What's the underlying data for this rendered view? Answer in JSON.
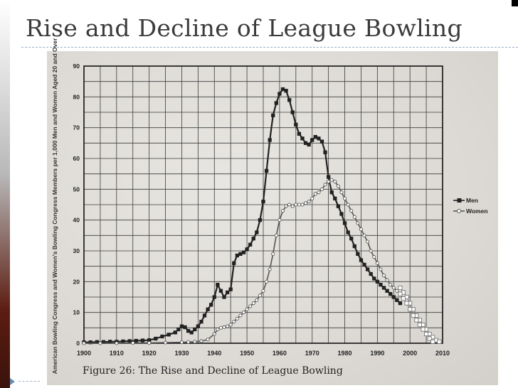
{
  "slide": {
    "title": "Rise and Decline of League Bowling"
  },
  "caption": "Figure 26: The Rise and Decline of League Bowling",
  "chart_data": {
    "type": "line",
    "xlabel": "",
    "ylabel": "American Bowling Congress and Women's Bowling Congress Members per 1,000 Men and Women Aged 20 and Over",
    "xlim": [
      1900,
      2010
    ],
    "ylim": [
      0,
      90
    ],
    "xticks": [
      1900,
      1910,
      1920,
      1930,
      1940,
      1950,
      1960,
      1970,
      1980,
      1990,
      2000,
      2010
    ],
    "yticks": [
      0,
      10,
      20,
      30,
      40,
      50,
      60,
      70,
      80,
      90
    ],
    "grid": true,
    "legend_position": "right",
    "colors": {
      "men": "#222222",
      "women": "#555555",
      "projection": "#777777",
      "grid": "#3a3a3a"
    },
    "series": [
      {
        "name": "Men",
        "marker": "filled-square",
        "x": [
          1900,
          1902,
          1904,
          1906,
          1908,
          1910,
          1912,
          1914,
          1916,
          1918,
          1920,
          1922,
          1924,
          1926,
          1928,
          1929,
          1930,
          1931,
          1932,
          1933,
          1934,
          1935,
          1936,
          1937,
          1938,
          1939,
          1940,
          1941,
          1942,
          1943,
          1944,
          1945,
          1946,
          1947,
          1948,
          1949,
          1950,
          1951,
          1952,
          1953,
          1954,
          1955,
          1956,
          1957,
          1958,
          1959,
          1960,
          1961,
          1962,
          1963,
          1964,
          1965,
          1966,
          1967,
          1968,
          1969,
          1970,
          1971,
          1972,
          1973,
          1974,
          1975,
          1976,
          1977,
          1978,
          1979,
          1980,
          1981,
          1982,
          1983,
          1984,
          1985,
          1986,
          1987,
          1988,
          1989,
          1990,
          1991,
          1992,
          1993,
          1994,
          1995,
          1996,
          1997
        ],
        "values": [
          0.3,
          0.3,
          0.4,
          0.4,
          0.5,
          0.5,
          0.6,
          0.7,
          0.8,
          0.9,
          1.0,
          1.5,
          2.2,
          2.8,
          3.5,
          4.5,
          5.5,
          5.2,
          4.0,
          3.5,
          4.5,
          5.5,
          7.0,
          9.0,
          11.0,
          12.5,
          15.0,
          19.0,
          17.0,
          15.0,
          16.5,
          17.5,
          26.0,
          28.5,
          29.0,
          29.5,
          30.5,
          32.0,
          34.0,
          36.0,
          40.0,
          46.0,
          56.0,
          66.0,
          74.0,
          78.0,
          81.0,
          82.5,
          82.0,
          79.0,
          75.0,
          71.0,
          68.0,
          66.5,
          65.0,
          64.5,
          66.0,
          67.0,
          66.5,
          65.5,
          62.0,
          54.0,
          49.0,
          47.0,
          44.5,
          42.0,
          39.0,
          36.0,
          34.0,
          31.5,
          29.0,
          27.0,
          25.5,
          24.0,
          22.5,
          21.0,
          20.0,
          19.0,
          18.0,
          17.0,
          16.0,
          15.0,
          14.0,
          13.0
        ]
      },
      {
        "name": "Women",
        "marker": "open-circle",
        "x": [
          1900,
          1905,
          1910,
          1915,
          1920,
          1925,
          1930,
          1932,
          1934,
          1936,
          1938,
          1940,
          1941,
          1942,
          1943,
          1944,
          1945,
          1946,
          1947,
          1948,
          1949,
          1950,
          1951,
          1952,
          1953,
          1954,
          1955,
          1956,
          1957,
          1958,
          1959,
          1960,
          1961,
          1962,
          1963,
          1964,
          1965,
          1966,
          1967,
          1968,
          1969,
          1970,
          1971,
          1972,
          1973,
          1974,
          1975,
          1976,
          1977,
          1978,
          1979,
          1980,
          1981,
          1982,
          1983,
          1984,
          1985,
          1986,
          1987,
          1988,
          1989,
          1990,
          1991,
          1992,
          1993,
          1994,
          1995,
          1996,
          1997
        ],
        "values": [
          0.0,
          0.0,
          0.0,
          0.1,
          0.1,
          0.2,
          0.3,
          0.4,
          0.5,
          0.7,
          1.2,
          3.0,
          4.5,
          5.0,
          5.2,
          5.5,
          6.0,
          7.0,
          8.0,
          9.0,
          10.0,
          11.0,
          12.0,
          13.0,
          14.0,
          15.5,
          17.0,
          20.0,
          24.0,
          29.0,
          35.0,
          40.0,
          43.0,
          44.5,
          45.0,
          44.5,
          45.0,
          45.0,
          45.0,
          45.5,
          46.0,
          47.0,
          48.5,
          49.0,
          50.0,
          51.5,
          52.5,
          53.0,
          52.5,
          51.0,
          49.0,
          47.0,
          45.0,
          43.0,
          41.0,
          39.0,
          37.0,
          35.0,
          33.0,
          30.0,
          28.0,
          26.0,
          24.0,
          22.0,
          20.5,
          19.0,
          18.0,
          17.0,
          16.0
        ]
      },
      {
        "name": "",
        "marker": "open-square",
        "x": [
          1997,
          1998,
          1999,
          2000,
          2001,
          2002,
          2003,
          2004,
          2005,
          2006,
          2007,
          2008,
          2009
        ],
        "values": [
          18.0,
          16.5,
          15.0,
          13.0,
          11.0,
          9.0,
          7.5,
          6.0,
          4.5,
          3.0,
          2.0,
          1.0,
          0.5
        ]
      },
      {
        "name": "",
        "marker": "open-square",
        "x": [
          1997,
          1998,
          1999,
          2000,
          2001,
          2002,
          2003,
          2004,
          2005,
          2006,
          2007
        ],
        "values": [
          16.0,
          14.5,
          13.0,
          11.0,
          9.0,
          7.5,
          6.0,
          4.5,
          3.0,
          1.5,
          0.5
        ]
      }
    ]
  }
}
